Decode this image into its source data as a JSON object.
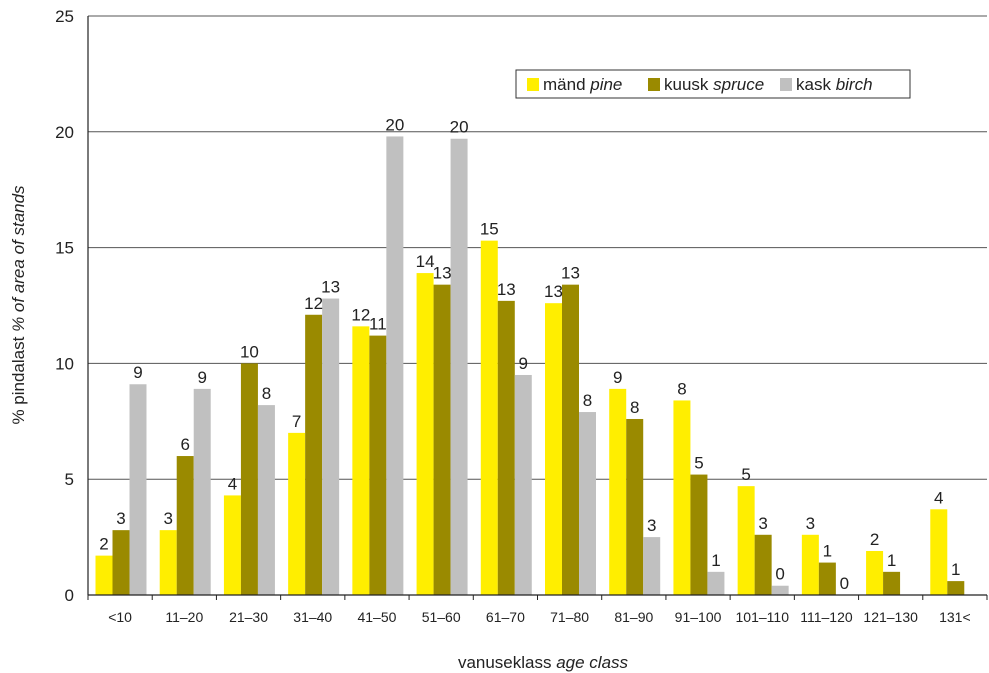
{
  "chart_data": {
    "type": "bar",
    "ylabel": {
      "main": "% pindalast ",
      "italic": "% of area of stands"
    },
    "xlabel": {
      "main": "vanuseklass ",
      "italic": "age class"
    },
    "ylim": [
      0,
      25
    ],
    "yticks": [
      0,
      5,
      10,
      15,
      20,
      25
    ],
    "grid": true,
    "legend_position": "top-right",
    "categories": [
      "<10",
      "11–20",
      "21–30",
      "31–40",
      "41–50",
      "51–60",
      "61–70",
      "71–80",
      "81–90",
      "91–100",
      "101–110",
      "111–120",
      "121–130",
      "131<"
    ],
    "series": [
      {
        "name": "mänd pine",
        "label_main": "mänd ",
        "label_italic": "pine",
        "color": "#ffee00",
        "values": [
          1.7,
          2.8,
          4.3,
          7.0,
          11.6,
          13.9,
          15.3,
          12.6,
          8.9,
          8.4,
          4.7,
          2.6,
          1.9,
          3.7
        ],
        "labels": [
          "2",
          "3",
          "4",
          "7",
          "12",
          "14",
          "15",
          "13",
          "9",
          "8",
          "5",
          "3",
          "2",
          "4"
        ]
      },
      {
        "name": "kuusk spruce",
        "label_main": "kuusk ",
        "label_italic": "spruce",
        "color": "#9a8a00",
        "values": [
          2.8,
          6.0,
          10.0,
          12.1,
          11.2,
          13.4,
          12.7,
          13.4,
          7.6,
          5.2,
          2.6,
          1.4,
          1.0,
          0.6
        ],
        "labels": [
          "3",
          "6",
          "10",
          "12",
          "11",
          "13",
          "13",
          "13",
          "8",
          "5",
          "3",
          "1",
          "1",
          "1"
        ]
      },
      {
        "name": "kask birch",
        "label_main": "kask ",
        "label_italic": "birch",
        "color": "#c0c0c0",
        "values": [
          9.1,
          8.9,
          8.2,
          12.8,
          19.8,
          19.7,
          9.5,
          7.9,
          2.5,
          1.0,
          0.4,
          0.0,
          0.0,
          0.0
        ],
        "labels": [
          "9",
          "9",
          "8",
          "13",
          "20",
          "20",
          "9",
          "8",
          "3",
          "1",
          "0",
          "0",
          "",
          ""
        ]
      }
    ]
  }
}
